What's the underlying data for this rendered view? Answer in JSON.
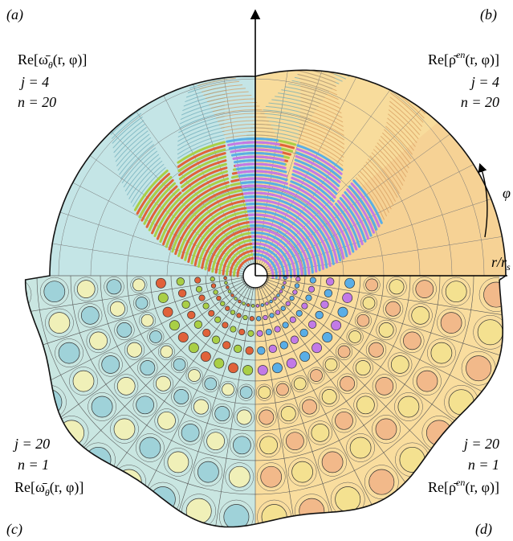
{
  "panels": [
    {
      "label": "(a)",
      "quantity": [
        "Re[ω̄",
        "θ",
        "(r, φ)]"
      ],
      "j": "j = 4",
      "n": "n = 20"
    },
    {
      "label": "(b)",
      "quantity": [
        "Re[ρ̄",
        "en",
        "(r, φ)]"
      ],
      "j": "j = 4",
      "n": "n = 20"
    },
    {
      "label": "(c)",
      "quantity": [
        "Re[ω̄",
        "θ",
        "(r, φ)]"
      ],
      "j": "j = 20",
      "n": "n = 1"
    },
    {
      "label": "(d)",
      "quantity": [
        "Re[ρ̄",
        "en",
        "(r, φ)]"
      ],
      "j": "j = 20",
      "n": "n = 1"
    }
  ],
  "axes": {
    "angle": "φ",
    "radius": [
      "r/r",
      "s"
    ]
  }
}
